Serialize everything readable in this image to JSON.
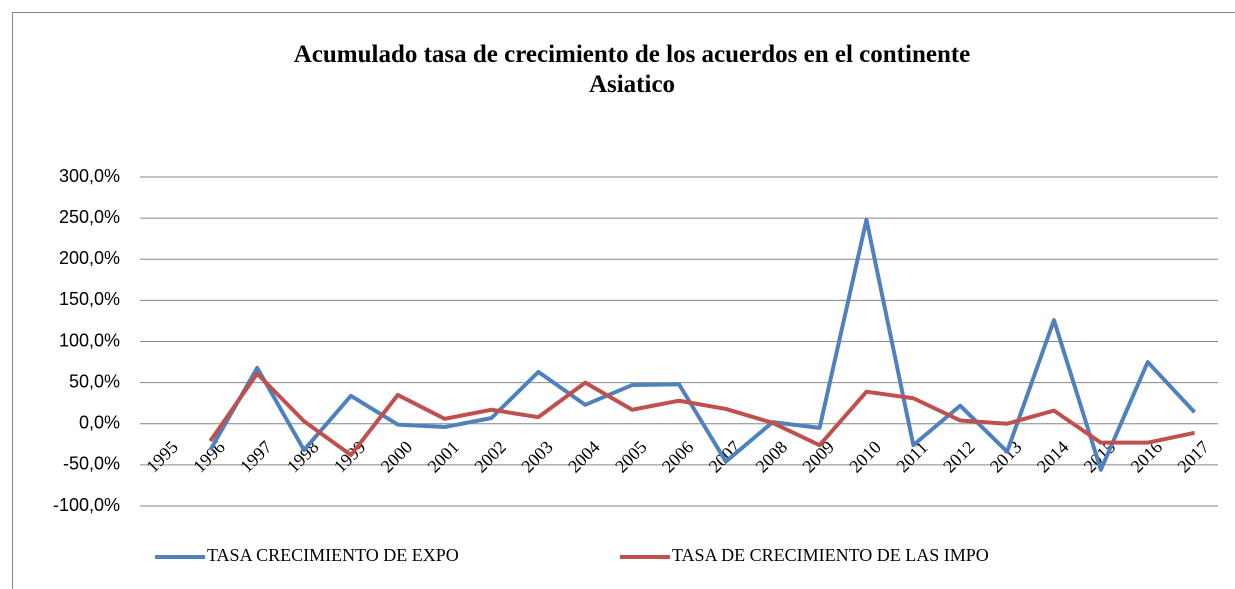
{
  "chart_data": {
    "type": "line",
    "title": "Acumulado tasa de crecimiento de los acuerdos en el continente\nAsiatico",
    "categories": [
      "1995",
      "1996",
      "1997",
      "1998",
      "1999",
      "2000",
      "2001",
      "2002",
      "2003",
      "2004",
      "2005",
      "2006",
      "2007",
      "2008",
      "2009",
      "2010",
      "2011",
      "2012",
      "2013",
      "2014",
      "2015",
      "2016",
      "2017"
    ],
    "series": [
      {
        "name": "TASA CRECIMIENTO DE EXPO",
        "color": "#4f81bd",
        "values": [
          null,
          -32,
          68,
          -32,
          34,
          -1,
          -4,
          7,
          63,
          23,
          47,
          48,
          -46,
          2,
          -5,
          248,
          -26,
          22,
          -34,
          126,
          -56,
          75,
          14
        ]
      },
      {
        "name": "TASA DE CRECIMIENTO DE LAS IMPO",
        "color": "#c0504d",
        "values": [
          null,
          -21,
          61,
          3,
          -38,
          35,
          6,
          17,
          8,
          50,
          17,
          28,
          18,
          1,
          -26,
          39,
          31,
          4,
          0,
          16,
          -23,
          -23,
          -11
        ]
      }
    ],
    "ylim": [
      -100,
      300
    ],
    "yticks": [
      {
        "value": -100,
        "label": "-100,0%"
      },
      {
        "value": -50,
        "label": "-50,0%"
      },
      {
        "value": 0,
        "label": "0,0%"
      },
      {
        "value": 50,
        "label": "50,0%"
      },
      {
        "value": 100,
        "label": "100,0%"
      },
      {
        "value": 150,
        "label": "150,0%"
      },
      {
        "value": 200,
        "label": "200,0%"
      },
      {
        "value": 250,
        "label": "250,0%"
      },
      {
        "value": 300,
        "label": "300,0%"
      }
    ],
    "grid": true,
    "legend": "bottom"
  }
}
